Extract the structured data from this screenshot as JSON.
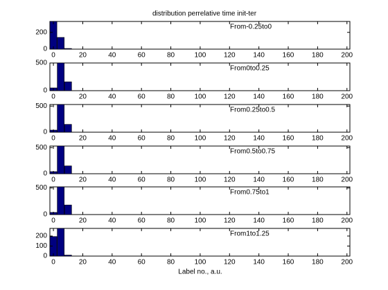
{
  "chart_data": [
    {
      "type": "bar",
      "title": "distribution perrelative time   init-ter",
      "annotation": "From-0.25to0",
      "x": [
        0,
        5,
        10
      ],
      "values": [
        330,
        140,
        8
      ],
      "bar_width": 5,
      "color": "#000080",
      "xlim": [
        -2.4,
        202
      ],
      "xticks": [
        0,
        20,
        40,
        60,
        80,
        100,
        120,
        140,
        160,
        180,
        200
      ],
      "ylim": [
        0,
        330
      ],
      "yticks": [
        0,
        200
      ],
      "grid": false
    },
    {
      "type": "bar",
      "annotation": "From0to0.25",
      "x": [
        0,
        5,
        10
      ],
      "values": [
        50,
        500,
        160
      ],
      "bar_width": 5,
      "color": "#000080",
      "xlim": [
        -2.4,
        202
      ],
      "xticks": [
        0,
        20,
        40,
        60,
        80,
        100,
        120,
        140,
        160,
        180,
        200
      ],
      "ylim": [
        0,
        500
      ],
      "yticks": [
        0,
        500
      ],
      "grid": false
    },
    {
      "type": "bar",
      "annotation": "From0.25to0.5",
      "x": [
        0,
        5,
        10
      ],
      "values": [
        40,
        530,
        150
      ],
      "bar_width": 5,
      "color": "#000080",
      "xlim": [
        -2.4,
        202
      ],
      "xticks": [
        0,
        20,
        40,
        60,
        80,
        100,
        120,
        140,
        160,
        180,
        200
      ],
      "ylim": [
        0,
        530
      ],
      "yticks": [
        0,
        500
      ],
      "grid": false
    },
    {
      "type": "bar",
      "annotation": "From0.5to0.75",
      "x": [
        0,
        5,
        10
      ],
      "values": [
        40,
        530,
        150
      ],
      "bar_width": 5,
      "color": "#000080",
      "xlim": [
        -2.4,
        202
      ],
      "xticks": [
        0,
        20,
        40,
        60,
        80,
        100,
        120,
        140,
        160,
        180,
        200
      ],
      "ylim": [
        0,
        530
      ],
      "yticks": [
        0,
        500
      ],
      "grid": false
    },
    {
      "type": "bar",
      "annotation": "From0.75to1",
      "x": [
        0,
        5,
        10
      ],
      "values": [
        40,
        520,
        180
      ],
      "bar_width": 5,
      "color": "#000080",
      "xlim": [
        -2.4,
        202
      ],
      "xticks": [
        0,
        20,
        40,
        60,
        80,
        100,
        120,
        140,
        160,
        180,
        200
      ],
      "ylim": [
        0,
        520
      ],
      "yticks": [
        0,
        500
      ],
      "grid": false
    },
    {
      "type": "bar",
      "annotation": "From1to1.25",
      "xlabel": "Label no., a.u.",
      "x": [
        0,
        5,
        10
      ],
      "values": [
        195,
        276,
        10
      ],
      "bar_width": 5,
      "color": "#000080",
      "xlim": [
        -2.4,
        202
      ],
      "xticks": [
        0,
        20,
        40,
        60,
        80,
        100,
        120,
        140,
        160,
        180,
        200
      ],
      "ylim": [
        0,
        276
      ],
      "yticks": [
        0,
        100,
        200
      ],
      "grid": false
    }
  ]
}
